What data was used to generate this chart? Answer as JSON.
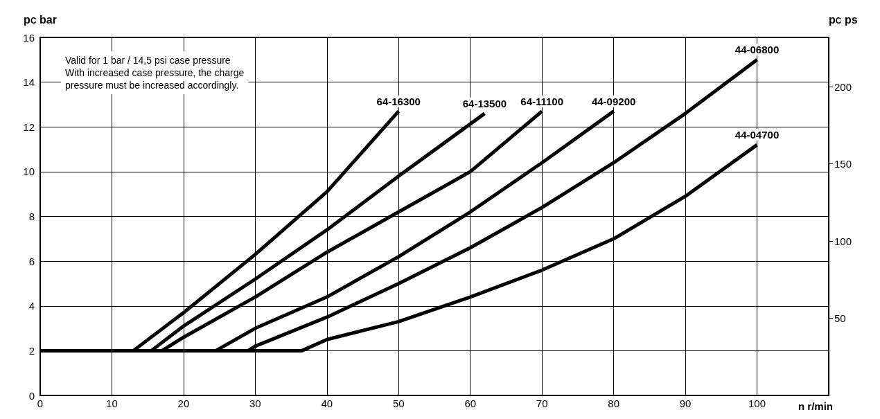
{
  "chart_data": {
    "type": "line",
    "xlabel": "n r/min",
    "ylabel": "p$_{C}$ bar",
    "y2label": "p$_{C}$ ps",
    "annotations": [
      "Valid for 1 bar / 14,5 psi case pressure\nWith increased case pressure, the charge\npressure must be increased accordingly."
    ],
    "xlim": [
      0,
      110
    ],
    "xticks": [
      0,
      10,
      20,
      30,
      40,
      50,
      60,
      70,
      80,
      90,
      100
    ],
    "ylim": [
      0,
      16
    ],
    "yticks": [
      0,
      2,
      4,
      6,
      8,
      10,
      12,
      14,
      16
    ],
    "y2lim": [
      0,
      232
    ],
    "y2ticks": [
      50,
      100,
      150,
      200
    ],
    "grid": true,
    "legend": false,
    "marker": "none",
    "line_style": "solid",
    "series": [
      {
        "name": "64-16300",
        "color": "#000000",
        "x": [
          0,
          13,
          20,
          30,
          40,
          50
        ],
        "values": [
          2,
          2,
          3.7,
          6.3,
          9.1,
          12.7
        ]
      },
      {
        "name": "64-13500",
        "color": "#000000",
        "x": [
          0,
          15.5,
          20,
          30,
          40,
          50,
          62
        ],
        "values": [
          2,
          2,
          3.1,
          5.2,
          7.4,
          9.8,
          12.6
        ]
      },
      {
        "name": "64-11100",
        "color": "#000000",
        "x": [
          0,
          17,
          20,
          30,
          40,
          50,
          60,
          70
        ],
        "values": [
          2,
          2,
          2.6,
          4.4,
          6.4,
          8.2,
          10,
          12.7
        ]
      },
      {
        "name": "44-09200",
        "color": "#000000",
        "x": [
          0,
          24.5,
          30,
          40,
          50,
          60,
          70,
          80
        ],
        "values": [
          2,
          2,
          3,
          4.4,
          6.2,
          8.2,
          10.4,
          12.7
        ]
      },
      {
        "name": "44-06800",
        "color": "#000000",
        "x": [
          0,
          29,
          30,
          40,
          50,
          60,
          70,
          80,
          90,
          100
        ],
        "values": [
          2,
          2,
          2.2,
          3.5,
          5,
          6.6,
          8.4,
          10.4,
          12.6,
          15
        ]
      },
      {
        "name": "44-04700",
        "color": "#000000",
        "x": [
          0,
          36.5,
          40,
          50,
          60,
          70,
          80,
          90,
          100
        ],
        "values": [
          2,
          2,
          2.5,
          3.3,
          4.4,
          5.6,
          7,
          8.9,
          11.2
        ]
      }
    ]
  }
}
